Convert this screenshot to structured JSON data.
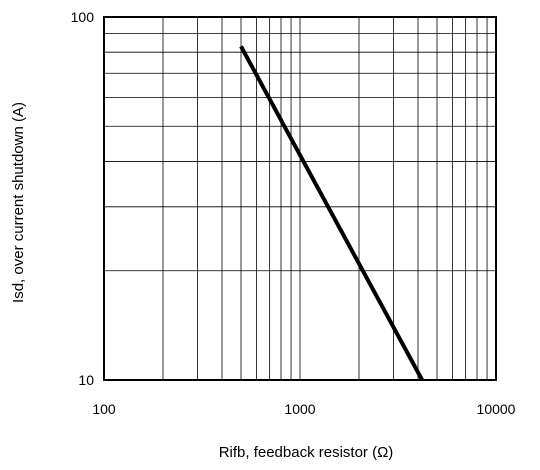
{
  "chart_data": {
    "type": "line",
    "x_scale": "log",
    "y_scale": "log",
    "xlim": [
      100,
      10000
    ],
    "ylim": [
      10,
      100
    ],
    "grid": true,
    "xlabel": "Rifb, feedback  resistor (Ω)",
    "ylabel": "Isd, over current shutdown  (A)",
    "x_ticks": [
      100,
      1000,
      10000
    ],
    "y_ticks": [
      10,
      100
    ],
    "x_tick_labels": [
      "100",
      "1000",
      "10000"
    ],
    "y_tick_labels": [
      "10",
      "100"
    ],
    "series": [
      {
        "x": [
          500,
          4200
        ],
        "y": [
          83,
          10
        ]
      }
    ]
  }
}
